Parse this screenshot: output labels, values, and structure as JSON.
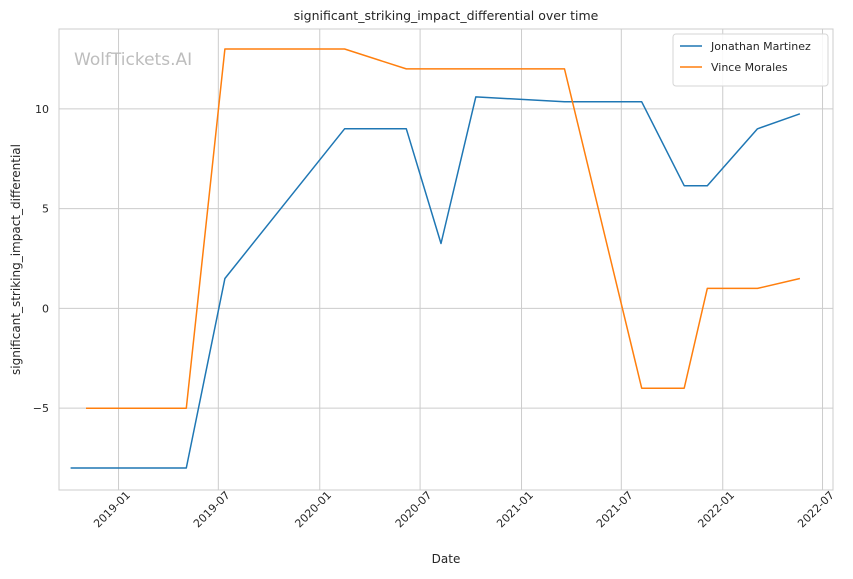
{
  "chart_data": {
    "type": "line",
    "title": "significant_striking_impact_differential over time",
    "xlabel": "Date",
    "ylabel": "significant_striking_impact_differential",
    "watermark": "WolfTickets.AI",
    "xlim": [
      "2018-09-15",
      "2022-07-20"
    ],
    "ylim": [
      -9.1,
      14.0
    ],
    "x_ticks": [
      "2019-01-01",
      "2019-07-01",
      "2020-01-01",
      "2020-07-01",
      "2021-01-01",
      "2021-07-01",
      "2022-01-01",
      "2022-07-01"
    ],
    "x_tick_labels": [
      "2019-01",
      "2019-07",
      "2020-01",
      "2020-07",
      "2021-01",
      "2021-07",
      "2022-01",
      "2022-07"
    ],
    "y_ticks": [
      -5,
      0,
      5,
      10
    ],
    "y_tick_labels": [
      "−5",
      "0",
      "5",
      "10"
    ],
    "grid": true,
    "legend_position": "top-right",
    "series": [
      {
        "name": "Jonathan Martinez",
        "color": "#1f77b4",
        "points": [
          {
            "x": "2018-10-06",
            "y": -8.0
          },
          {
            "x": "2019-05-04",
            "y": -8.0
          },
          {
            "x": "2019-07-13",
            "y": 1.5
          },
          {
            "x": "2020-02-15",
            "y": 9.0
          },
          {
            "x": "2020-06-06",
            "y": 9.0
          },
          {
            "x": "2020-08-08",
            "y": 3.25
          },
          {
            "x": "2020-10-10",
            "y": 10.6
          },
          {
            "x": "2021-03-20",
            "y": 10.35
          },
          {
            "x": "2021-08-07",
            "y": 10.35
          },
          {
            "x": "2021-10-23",
            "y": 6.15
          },
          {
            "x": "2021-12-04",
            "y": 6.15
          },
          {
            "x": "2022-03-05",
            "y": 9.0
          },
          {
            "x": "2022-05-21",
            "y": 9.75
          }
        ]
      },
      {
        "name": "Vince Morales",
        "color": "#ff7f0e",
        "points": [
          {
            "x": "2018-11-03",
            "y": -5.0
          },
          {
            "x": "2019-05-04",
            "y": -5.0
          },
          {
            "x": "2019-07-13",
            "y": 13.0
          },
          {
            "x": "2020-02-15",
            "y": 13.0
          },
          {
            "x": "2020-06-06",
            "y": 12.0
          },
          {
            "x": "2021-03-20",
            "y": 12.0
          },
          {
            "x": "2021-08-07",
            "y": -4.0
          },
          {
            "x": "2021-10-23",
            "y": -4.0
          },
          {
            "x": "2021-12-04",
            "y": 1.0
          },
          {
            "x": "2022-03-05",
            "y": 1.0
          },
          {
            "x": "2022-05-21",
            "y": 1.5
          }
        ]
      }
    ]
  }
}
